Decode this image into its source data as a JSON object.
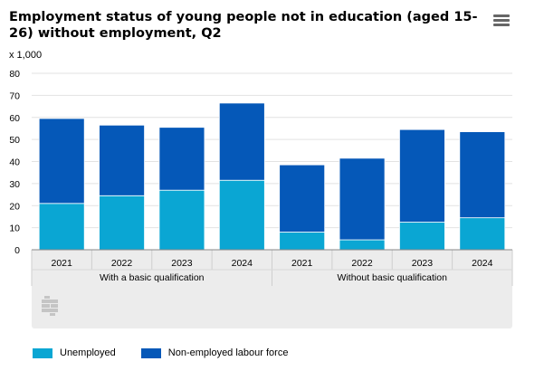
{
  "title": "Employment status of young people not in education (aged 15-26) without employment, Q2",
  "unit_label": "x 1,000",
  "menu_icon": "hamburger-menu-icon",
  "logo_icon": "cbs-logo-icon",
  "colors": {
    "unemployed": "#0aa6d3",
    "non_employed": "#0558b8",
    "grid": "#e2e2e2",
    "axis": "#888888",
    "panel": "#ececec"
  },
  "chart_data": {
    "type": "bar",
    "stacked": true,
    "ylim": [
      0,
      80
    ],
    "yticks": [
      "0",
      "10",
      "20",
      "30",
      "40",
      "50",
      "60",
      "70",
      "80"
    ],
    "categories": [
      "2021",
      "2022",
      "2023",
      "2024",
      "2021",
      "2022",
      "2023",
      "2024"
    ],
    "groups": [
      "With a basic qualification",
      "Without basic qualification"
    ],
    "series": [
      {
        "name": "Unemployed",
        "values": [
          21,
          24.5,
          27,
          31.5,
          8,
          4.5,
          12.5,
          14.5
        ]
      },
      {
        "name": "Non-employed labour force",
        "values": [
          38.5,
          32,
          28.5,
          35,
          30.5,
          37,
          42,
          39
        ]
      }
    ],
    "legend": "bottom"
  }
}
